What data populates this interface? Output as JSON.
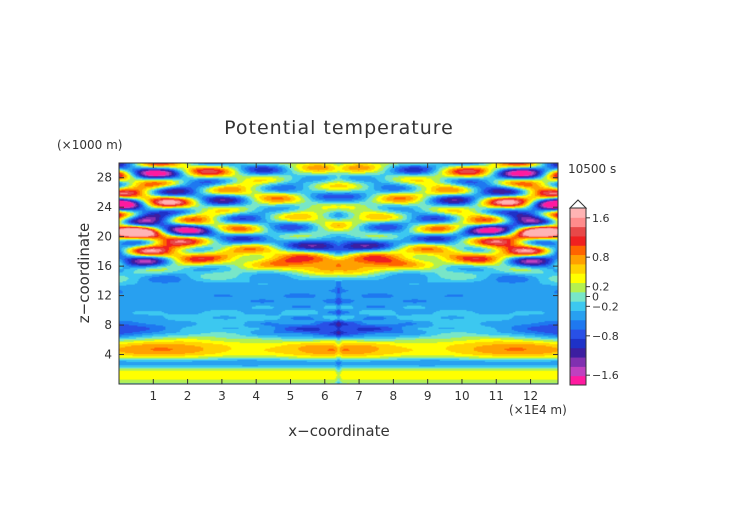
{
  "chart_data": {
    "type": "heatmap",
    "title": "Potential temperature",
    "time_label": "10500 s",
    "xlabel": "x−coordinate",
    "ylabel": "z−coordinate",
    "x_unit": "(×1E4 m)",
    "y_unit": "(×1000 m)",
    "xlim": [
      0,
      12.8
    ],
    "ylim": [
      0,
      30
    ],
    "x_ticks": [
      1,
      2,
      3,
      4,
      5,
      6,
      7,
      8,
      9,
      10,
      11,
      12
    ],
    "y_ticks": [
      4,
      8,
      12,
      16,
      20,
      24,
      28
    ],
    "colorbar": {
      "min": -1.8,
      "max": 1.8,
      "tick_values": [
        1.6,
        0.8,
        0.2,
        0,
        -0.2,
        -0.8,
        -1.6
      ],
      "tick_labels": [
        "1.6",
        "0.8",
        "0.2",
        "0",
        "−0.2",
        "−0.8",
        "−1.6"
      ],
      "colors": [
        "#ff1aa0",
        "#c040c0",
        "#8030b0",
        "#3c1ea0",
        "#1e32c8",
        "#2850e6",
        "#1e78f0",
        "#28a0f0",
        "#3cc8f0",
        "#78e6c8",
        "#b4f050",
        "#ffff00",
        "#ffd200",
        "#ffa000",
        "#ff6400",
        "#f02020",
        "#e84848",
        "#ff8c8c",
        "#ffb4b4"
      ]
    }
  }
}
